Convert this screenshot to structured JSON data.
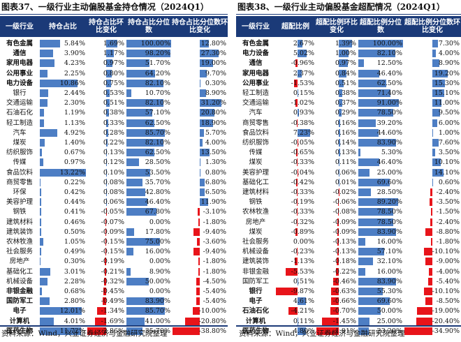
{
  "left": {
    "title": "图表37、一级行业主动偏股基金持仓情况（2024Q1）",
    "headers": [
      "一级行业",
      "持仓占比",
      "持仓占比环比变化",
      "持仓占比分位数",
      "持仓占比分位数环比变化"
    ],
    "rows": [
      {
        "name": "有色金属",
        "bold": true,
        "v": [
          "5.84%",
          "1.69%",
          "100.00%",
          "12.80%"
        ],
        "n": [
          5.84,
          1.69,
          100.0,
          12.8
        ]
      },
      {
        "name": "通信",
        "bold": true,
        "v": [
          "3.90%",
          "1.17%",
          "98.20%",
          "27.30%"
        ],
        "n": [
          3.9,
          1.17,
          98.2,
          27.3
        ]
      },
      {
        "name": "家用电器",
        "bold": true,
        "v": [
          "4.23%",
          "0.97%",
          "51.70%",
          "19.00%"
        ],
        "n": [
          4.23,
          0.97,
          51.7,
          19.0
        ]
      },
      {
        "name": "公用事业",
        "bold": true,
        "v": [
          "2.25%",
          "0.80%",
          "64.20%",
          "9.70%"
        ],
        "n": [
          2.25,
          0.8,
          64.2,
          9.7
        ]
      },
      {
        "name": "电力设备",
        "bold": true,
        "v": [
          "10.86%",
          "0.75%",
          "82.10%",
          "0.30%"
        ],
        "n": [
          10.86,
          0.75,
          82.1,
          0.3
        ]
      },
      {
        "name": "银行",
        "bold": false,
        "v": [
          "2.44%",
          "0.53%",
          "10.70%",
          "8.90%"
        ],
        "n": [
          2.44,
          0.53,
          10.7,
          8.9
        ]
      },
      {
        "name": "交通运输",
        "bold": false,
        "v": [
          "2.30%",
          "0.51%",
          "82.10%",
          "31.20%"
        ],
        "n": [
          2.3,
          0.51,
          82.1,
          31.2
        ]
      },
      {
        "name": "石油石化",
        "bold": false,
        "v": [
          "1.19%",
          "0.38%",
          "57.10%",
          "20.80%"
        ],
        "n": [
          1.19,
          0.38,
          57.1,
          20.8
        ]
      },
      {
        "name": "轻工制造",
        "bold": false,
        "v": [
          "1.13%",
          "0.33%",
          "62.50%",
          "18.90%"
        ],
        "n": [
          1.13,
          0.33,
          62.5,
          18.9
        ]
      },
      {
        "name": "汽车",
        "bold": false,
        "v": [
          "4.92%",
          "0.28%",
          "85.70%",
          "5.70%"
        ],
        "n": [
          4.92,
          0.28,
          85.7,
          5.7
        ]
      },
      {
        "name": "煤炭",
        "bold": false,
        "v": [
          "1.40%",
          "0.22%",
          "82.10%",
          "4.00%"
        ],
        "n": [
          1.4,
          0.22,
          82.1,
          4.0
        ]
      },
      {
        "name": "纺织服饰",
        "bold": false,
        "v": [
          "0.67%",
          "0.13%",
          "62.50%",
          "13.50%"
        ],
        "n": [
          0.67,
          0.13,
          62.5,
          13.5
        ]
      },
      {
        "name": "传媒",
        "bold": false,
        "v": [
          "0.97%",
          "0.12%",
          "28.50%",
          "1.30%"
        ],
        "n": [
          0.97,
          0.12,
          28.5,
          1.3
        ]
      },
      {
        "name": "食品饮料",
        "bold": false,
        "v": [
          "13.22%",
          "0.10%",
          "53.50%",
          "0.80%"
        ],
        "n": [
          13.22,
          0.1,
          53.5,
          0.8
        ]
      },
      {
        "name": "商贸零售",
        "bold": false,
        "v": [
          "0.22%",
          "0.08%",
          "35.70%",
          "6.80%"
        ],
        "n": [
          0.22,
          0.08,
          35.7,
          6.8
        ]
      },
      {
        "name": "环保",
        "bold": false,
        "v": [
          "0.42%",
          "0.08%",
          "42.80%",
          "6.50%"
        ],
        "n": [
          0.42,
          0.08,
          42.8,
          6.5
        ]
      },
      {
        "name": "美容护理",
        "bold": false,
        "v": [
          "0.44%",
          "0.06%",
          "46.40%",
          "11.90%"
        ],
        "n": [
          0.44,
          0.06,
          46.4,
          11.9
        ]
      },
      {
        "name": "钢铁",
        "bold": false,
        "v": [
          "0.41%",
          "-0.05%",
          "67.80%",
          "-3.10%"
        ],
        "n": [
          0.41,
          -0.05,
          67.8,
          -3.1
        ]
      },
      {
        "name": "建筑材料",
        "bold": false,
        "v": [
          "0.46%",
          "-0.07%",
          "0.00%",
          "-1.80%"
        ],
        "n": [
          0.46,
          -0.07,
          0.0,
          -1.8
        ]
      },
      {
        "name": "建筑装饰",
        "bold": false,
        "v": [
          "0.50%",
          "-0.09%",
          "17.80%",
          "-9.40%"
        ],
        "n": [
          0.5,
          -0.09,
          17.8,
          -9.4
        ]
      },
      {
        "name": "农林牧渔",
        "bold": false,
        "v": [
          "1.05%",
          "-0.15%",
          "75.00%",
          "-3.60%"
        ],
        "n": [
          1.05,
          -0.15,
          75.0,
          -3.6
        ]
      },
      {
        "name": "社会服务",
        "bold": false,
        "v": [
          "0.49%",
          "-0.15%",
          "16.00%",
          "-9.40%"
        ],
        "n": [
          0.49,
          -0.15,
          16.0,
          -9.4
        ]
      },
      {
        "name": "房地产",
        "bold": false,
        "v": [
          "0.30%",
          "-0.19%",
          "0.00%",
          "-1.80%"
        ],
        "n": [
          0.3,
          -0.19,
          0.0,
          -1.8
        ]
      },
      {
        "name": "基础化工",
        "bold": false,
        "v": [
          "3.01%",
          "-0.21%",
          "8.90%",
          "-1.80%"
        ],
        "n": [
          3.01,
          -0.21,
          8.9,
          -1.8
        ]
      },
      {
        "name": "机械设备",
        "bold": false,
        "v": [
          "2.28%",
          "-0.32%",
          "50.00%",
          "-4.50%"
        ],
        "n": [
          2.28,
          -0.32,
          50.0,
          -4.5
        ]
      },
      {
        "name": "非银金融",
        "bold": true,
        "v": [
          "0.68%",
          "-0.45%",
          "0.00%",
          "-5.40%"
        ],
        "n": [
          0.68,
          -0.45,
          0.0,
          -5.4
        ]
      },
      {
        "name": "国防军工",
        "bold": true,
        "v": [
          "2.80%",
          "-0.49%",
          "83.90%",
          "-5.40%"
        ],
        "n": [
          2.8,
          -0.49,
          83.9,
          -5.4
        ]
      },
      {
        "name": "电子",
        "bold": true,
        "v": [
          "12.01%",
          "-1.34%",
          "85.70%",
          "-10.00%"
        ],
        "n": [
          12.01,
          -1.34,
          85.7,
          -10.0
        ]
      },
      {
        "name": "计算机",
        "bold": true,
        "v": [
          "4.01%",
          "-1.69%",
          "41.00%",
          "-20.80%"
        ],
        "n": [
          4.01,
          -1.69,
          41.0,
          -20.8
        ]
      },
      {
        "name": "医药生物",
        "bold": true,
        "v": [
          "11.72%",
          "-2.86%",
          "35.70%",
          "-38.80%"
        ],
        "n": [
          11.72,
          -2.86,
          35.7,
          -38.8
        ]
      }
    ]
  },
  "right": {
    "title": "图表38、一级行业主动偏股基金超配情况（2024Q1）",
    "headers": [
      "一级行业",
      "超配比例",
      "超配比例环比变化",
      "超配比例分位数",
      "超配比例分位数环比变化"
    ],
    "rows": [
      {
        "name": "有色金属",
        "bold": true,
        "v": [
          "2.67%",
          "1.39%",
          "100.00%",
          "7.30%"
        ],
        "n": [
          2.67,
          1.39,
          100.0,
          7.3
        ]
      },
      {
        "name": "电力设备",
        "bold": true,
        "v": [
          "5.02%",
          "1.00%",
          "82.10%",
          "4.00%"
        ],
        "n": [
          5.02,
          1.0,
          82.1,
          4.0
        ]
      },
      {
        "name": "通信",
        "bold": true,
        "v": [
          "-0.96%",
          "0.97%",
          "12.50%",
          "8.90%"
        ],
        "n": [
          -0.96,
          0.97,
          12.5,
          8.9
        ]
      },
      {
        "name": "家用电器",
        "bold": true,
        "v": [
          "2.37%",
          "0.84%",
          "46.40%",
          "19.20%"
        ],
        "n": [
          2.37,
          0.84,
          46.4,
          19.2
        ]
      },
      {
        "name": "公用事业",
        "bold": true,
        "v": [
          "-1.53%",
          "0.51%",
          "62.50%",
          "15.30%"
        ],
        "n": [
          -1.53,
          0.51,
          62.5,
          15.3
        ]
      },
      {
        "name": "轻工制造",
        "bold": false,
        "v": [
          "0.15%",
          "0.38%",
          "71.40%",
          "15.10%"
        ],
        "n": [
          0.15,
          0.38,
          71.4,
          15.1
        ]
      },
      {
        "name": "交通运输",
        "bold": false,
        "v": [
          "-1.02%",
          "0.37%",
          "91.00%",
          "11.00%"
        ],
        "n": [
          -1.02,
          0.37,
          91.0,
          11.0
        ]
      },
      {
        "name": "汽车",
        "bold": false,
        "v": [
          "0.93%",
          "0.29%",
          "78.50%",
          "9.50%"
        ],
        "n": [
          0.93,
          0.29,
          78.5,
          9.5
        ]
      },
      {
        "name": "商贸零售",
        "bold": false,
        "v": [
          "-0.38%",
          "0.16%",
          "39.20%",
          "6.00%"
        ],
        "n": [
          -0.38,
          0.16,
          39.2,
          6.0
        ]
      },
      {
        "name": "食品饮料",
        "bold": false,
        "v": [
          "7.23%",
          "0.16%",
          "44.60%",
          "1.00%"
        ],
        "n": [
          7.23,
          0.16,
          44.6,
          1.0
        ]
      },
      {
        "name": "纺织服饰",
        "bold": false,
        "v": [
          "-0.05%",
          "0.14%",
          "83.90%",
          "7.60%"
        ],
        "n": [
          -0.05,
          0.14,
          83.9,
          7.6
        ]
      },
      {
        "name": "传媒",
        "bold": false,
        "v": [
          "-0.65%",
          "0.13%",
          "5.30%",
          "3.50%"
        ],
        "n": [
          -0.65,
          0.13,
          5.3,
          3.5
        ]
      },
      {
        "name": "煤炭",
        "bold": false,
        "v": [
          "-0.33%",
          "0.11%",
          "46.40%",
          "10.10%"
        ],
        "n": [
          -0.33,
          0.11,
          46.4,
          10.1
        ]
      },
      {
        "name": "美容护理",
        "bold": false,
        "v": [
          "-0.04%",
          "0.06%",
          "25.00%",
          "14.10%"
        ],
        "n": [
          -0.04,
          0.06,
          25.0,
          14.1
        ]
      },
      {
        "name": "基础化工",
        "bold": false,
        "v": [
          "-0.42%",
          "0.01%",
          "69.60%",
          "0.60%"
        ],
        "n": [
          -0.42,
          0.01,
          69.6,
          0.6
        ]
      },
      {
        "name": "建筑材料",
        "bold": false,
        "v": [
          "-0.33%",
          "-0.02%",
          "28.50%",
          "-2.40%"
        ],
        "n": [
          -0.33,
          -0.02,
          28.5,
          -2.4
        ]
      },
      {
        "name": "钢铁",
        "bold": false,
        "v": [
          "-0.19%",
          "-0.06%",
          "89.20%",
          "-3.50%"
        ],
        "n": [
          -0.19,
          -0.06,
          89.2,
          -3.5
        ]
      },
      {
        "name": "农林牧渔",
        "bold": false,
        "v": [
          "-0.33%",
          "-0.08%",
          "78.50%",
          "-1.50%"
        ],
        "n": [
          -0.33,
          -0.08,
          78.5,
          -1.5
        ]
      },
      {
        "name": "房地产",
        "bold": false,
        "v": [
          "-0.32%",
          "-0.09%",
          "78.50%",
          "-2.40%"
        ],
        "n": [
          -0.32,
          -0.09,
          78.5,
          -2.4
        ]
      },
      {
        "name": "煤炭",
        "bold": false,
        "v": [
          "-0.89%",
          "-0.09%",
          "83.90%",
          "-8.80%"
        ],
        "n": [
          -0.89,
          -0.09,
          83.9,
          -8.8
        ]
      },
      {
        "name": "社会服务",
        "bold": false,
        "v": [
          "0.00%",
          "-0.13%",
          "16.00%",
          "-1.80%"
        ],
        "n": [
          0.0,
          -0.13,
          16.0,
          -1.8
        ]
      },
      {
        "name": "机械设备",
        "bold": false,
        "v": [
          "-0.23%",
          "-0.13%",
          "57.10%",
          "-10.10%"
        ],
        "n": [
          -0.23,
          -0.13,
          57.1,
          -10.1
        ]
      },
      {
        "name": "建筑装饰",
        "bold": false,
        "v": [
          "-1.13%",
          "-0.18%",
          "32.10%",
          "-9.00%"
        ],
        "n": [
          -1.13,
          -0.18,
          32.1,
          -9.0
        ]
      },
      {
        "name": "非银金融",
        "bold": false,
        "v": [
          "-5.53%",
          "-0.22%",
          "16.00%",
          "-4.00%"
        ],
        "n": [
          -5.53,
          -0.22,
          16.0,
          -4.0
        ]
      },
      {
        "name": "国防军工",
        "bold": false,
        "v": [
          "0.51%",
          "-0.46%",
          "83.90%",
          "-5.40%"
        ],
        "n": [
          0.51,
          -0.46,
          83.9,
          -5.4
        ]
      },
      {
        "name": "银行",
        "bold": true,
        "v": [
          "-9.87%",
          "-0.63%",
          "55.30%",
          "-10.10%"
        ],
        "n": [
          -9.87,
          -0.63,
          55.3,
          -10.1
        ]
      },
      {
        "name": "电子",
        "bold": true,
        "v": [
          "4.61%",
          "-0.66%",
          "69.60%",
          "-8.50%"
        ],
        "n": [
          4.61,
          -0.66,
          69.6,
          -8.5
        ]
      },
      {
        "name": "石油石化",
        "bold": true,
        "v": [
          "-4.21%",
          "-0.70%",
          "50.00%",
          "-19.00%"
        ],
        "n": [
          -4.21,
          -0.7,
          50.0,
          -19.0
        ]
      },
      {
        "name": "计算机",
        "bold": true,
        "v": [
          "0.11%",
          "-1.45%",
          "25.00%",
          "-20.40%"
        ],
        "n": [
          0.11,
          -1.45,
          25.0,
          -20.4
        ]
      },
      {
        "name": "医药生物",
        "bold": true,
        "v": [
          "4.80%",
          "-1.91%",
          "23.20%",
          "-34.90%"
        ],
        "n": [
          4.8,
          -1.91,
          23.2,
          -34.9
        ]
      }
    ]
  },
  "footer": "资料来源：Wind，兴业证券经济与金融研究院整理",
  "colors": {
    "header_bg": "#1b3a78",
    "positive_bar": "#4d7ec4",
    "negative_bar": "#e8141a"
  }
}
